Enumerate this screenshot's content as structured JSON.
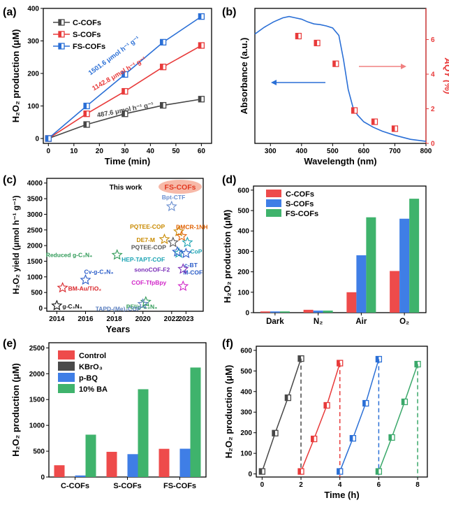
{
  "colors": {
    "c": "#474747",
    "s": "#e83a3a",
    "fs": "#2a6fd6",
    "blue": "#2a6fd6",
    "red": "#e83a3a",
    "green": "#3aa86a",
    "darkgreen": "#2f9a57",
    "barRed": "#ee4b4b",
    "barBlue": "#3f7ee6",
    "barGreen": "#3fb36c",
    "barGray": "#4a4a4a"
  },
  "icons": [
    "star-icon",
    "left-arrow-icon",
    "right-arrow-icon"
  ],
  "chart_data": [
    {
      "panel": "(a)",
      "type": "line",
      "xlabel": "Time (min)",
      "ylabel": "H₂O₂ production (μM)",
      "xlim": [
        -2,
        64
      ],
      "ylim": [
        -15,
        400
      ],
      "xticks": [
        0,
        10,
        20,
        30,
        40,
        50,
        60
      ],
      "yticks": [
        0,
        100,
        200,
        300,
        400
      ],
      "legend_placement": "top-left",
      "series": [
        {
          "name": "C-COFs",
          "color": "#474747",
          "x": [
            0,
            15,
            30,
            45,
            60
          ],
          "y": [
            0,
            43,
            76,
            102,
            121
          ],
          "annotation": "487.6 μmol h⁻¹ g⁻¹"
        },
        {
          "name": "S-COFs",
          "color": "#e83a3a",
          "x": [
            0,
            15,
            30,
            45,
            60
          ],
          "y": [
            0,
            76,
            145,
            220,
            286
          ],
          "annotation": "1142.8 μmol h⁻¹ g⁻¹"
        },
        {
          "name": "FS-COFs",
          "color": "#2a6fd6",
          "x": [
            0,
            15,
            30,
            45,
            60
          ],
          "y": [
            0,
            100,
            197,
            296,
            375
          ],
          "annotation": "1501.6 μmol h⁻¹ g⁻¹"
        }
      ]
    },
    {
      "panel": "(b)",
      "type": "line",
      "xlabel": "Wavelength (nm)",
      "ylabel": "Absorbance (a.u.)",
      "y2label": "AQY (%)",
      "xlim": [
        250,
        800
      ],
      "y2lim": [
        0,
        7.8
      ],
      "xticks": [
        300,
        400,
        500,
        600,
        700,
        800
      ],
      "y2ticks": [
        0,
        2,
        4,
        6
      ],
      "absorbance_curve": {
        "x": [
          250,
          280,
          310,
          340,
          360,
          380,
          400,
          420,
          440,
          460,
          480,
          500,
          520,
          535,
          550,
          565,
          580,
          600,
          630,
          660,
          700,
          750,
          800
        ],
        "y": [
          0.81,
          0.86,
          0.9,
          0.93,
          0.94,
          0.93,
          0.92,
          0.9,
          0.885,
          0.88,
          0.87,
          0.855,
          0.8,
          0.62,
          0.4,
          0.27,
          0.21,
          0.16,
          0.12,
          0.09,
          0.06,
          0.03,
          0.015
        ]
      },
      "aqy_points": {
        "x": [
          390,
          450,
          510,
          570,
          635,
          700
        ],
        "y": [
          6.2,
          5.8,
          4.6,
          1.9,
          1.25,
          0.85
        ]
      }
    },
    {
      "panel": "(c)",
      "type": "scatter",
      "xlabel": "Years",
      "ylabel": "H₂O₂ yield (μmol h⁻¹ g⁻¹)",
      "xlim": [
        2013.3,
        2024.2
      ],
      "ylim": [
        -100,
        4150
      ],
      "xticks": [
        2014,
        2016,
        2018,
        2020,
        2022,
        2023
      ],
      "yticks": [
        0,
        500,
        1000,
        1500,
        2000,
        2500,
        3000,
        3500,
        4000
      ],
      "this_work_label": "This work",
      "this_work_badge": "FS-COFs",
      "points": [
        {
          "label": "g-C₃N₄",
          "x": 2014,
          "y": 80,
          "color": "#111111"
        },
        {
          "label": "BM-Au/TiO₂",
          "x": 2014.4,
          "y": 650,
          "color": "#d9252a"
        },
        {
          "label": "Cv-g-C₃N₄",
          "x": 2016,
          "y": 900,
          "color": "#2a5cc8"
        },
        {
          "label": "Reduced g-C₃N₄",
          "x": 2018.2,
          "y": 1700,
          "color": "#2f9a57"
        },
        {
          "label": "PEI/g-C₃N₄",
          "x": 2020.2,
          "y": 200,
          "color": "#2f9a57"
        },
        {
          "label": "TAPD-(Me)₂COF",
          "x": 2020,
          "y": 130,
          "color": "#5b7fbf"
        },
        {
          "label": "Bpt-CTF",
          "x": 2022,
          "y": 3250,
          "color": "#6a8fd0"
        },
        {
          "label": "PQTEE-COP",
          "x": 2022.5,
          "y": 2450,
          "color": "#c98a00"
        },
        {
          "label": "DE7-M",
          "x": 2021.5,
          "y": 2200,
          "color": "#c98a00"
        },
        {
          "label": "DMCR-1NH",
          "x": 2022.7,
          "y": 2300,
          "color": "#e06000"
        },
        {
          "label": "PQTEE-COP",
          "x": 2022.1,
          "y": 2100,
          "color": "#555555"
        },
        {
          "label": "CoP",
          "x": 2023.1,
          "y": 2100,
          "color": "#1ba3b3"
        },
        {
          "label": "HEP-TAPT-COF",
          "x": 2022.5,
          "y": 1760,
          "color": "#1ba3b3"
        },
        {
          "label": "c-BT",
          "x": 2022.4,
          "y": 1800,
          "color": "#2a5cc8"
        },
        {
          "label": "M-COF",
          "x": 2023,
          "y": 1750,
          "color": "#2a5cc8"
        },
        {
          "label": "sonoCOF-F2",
          "x": 2022.8,
          "y": 1250,
          "color": "#7a2fb8"
        },
        {
          "label": "COF-TfpBpy",
          "x": 2022.8,
          "y": 700,
          "color": "#d128c9"
        }
      ]
    },
    {
      "panel": "(d)",
      "type": "bar",
      "ylabel": "H₂O₂ production (μM)",
      "ylim": [
        0,
        620
      ],
      "yticks": [
        0,
        100,
        200,
        300,
        400,
        500,
        600
      ],
      "legend_placement": "top-left",
      "categories": [
        "Dark",
        "N₂",
        "Air",
        "O₂"
      ],
      "series": [
        {
          "name": "C-COFs",
          "color": "#ee4b4b",
          "values": [
            6,
            14,
            100,
            204
          ]
        },
        {
          "name": "S-COFs",
          "color": "#3f7ee6",
          "values": [
            6,
            10,
            281,
            460
          ]
        },
        {
          "name": "FS-COFs",
          "color": "#3fb36c",
          "values": [
            6,
            10,
            467,
            558
          ]
        }
      ]
    },
    {
      "panel": "(e)",
      "type": "bar",
      "ylabel": "H₂O₂ production (μM)",
      "ylim": [
        0,
        2600
      ],
      "yticks": [
        0,
        500,
        1000,
        1500,
        2000,
        2500
      ],
      "legend_placement": "top-left",
      "categories": [
        "C-COFs",
        "S-COFs",
        "FS-COFs"
      ],
      "series": [
        {
          "name": "Control",
          "color": "#ee4b4b",
          "values": [
            228,
            488,
            546
          ]
        },
        {
          "name": "KBrO₃",
          "color": "#4a4a4a",
          "values": [
            8,
            12,
            12
          ]
        },
        {
          "name": "p-BQ",
          "color": "#3f7ee6",
          "values": [
            30,
            443,
            548
          ]
        },
        {
          "name": "10% BA",
          "color": "#3fb36c",
          "values": [
            820,
            1700,
            2120
          ]
        }
      ]
    },
    {
      "panel": "(f)",
      "type": "line",
      "xlabel": "Time (h)",
      "ylabel": "H₂O₂ production (μM)",
      "xlim": [
        -0.3,
        8.5
      ],
      "ylim": [
        -15,
        620
      ],
      "xticks": [
        0,
        2,
        4,
        6,
        8
      ],
      "yticks": [
        0,
        100,
        200,
        300,
        400,
        500,
        600
      ],
      "cycle_ends": [
        2,
        4,
        6,
        8
      ],
      "series": [
        {
          "color": "#474747",
          "x": [
            0,
            0.67,
            1.33,
            2
          ],
          "y": [
            12,
            198,
            370,
            560
          ]
        },
        {
          "color": "#e83a3a",
          "x": [
            2,
            2.67,
            3.33,
            4
          ],
          "y": [
            12,
            170,
            333,
            538
          ]
        },
        {
          "color": "#2a6fd6",
          "x": [
            4,
            4.67,
            5.33,
            6
          ],
          "y": [
            12,
            173,
            343,
            557
          ]
        },
        {
          "color": "#3aa86a",
          "x": [
            6,
            6.67,
            7.33,
            8
          ],
          "y": [
            12,
            177,
            350,
            533
          ]
        }
      ]
    }
  ]
}
